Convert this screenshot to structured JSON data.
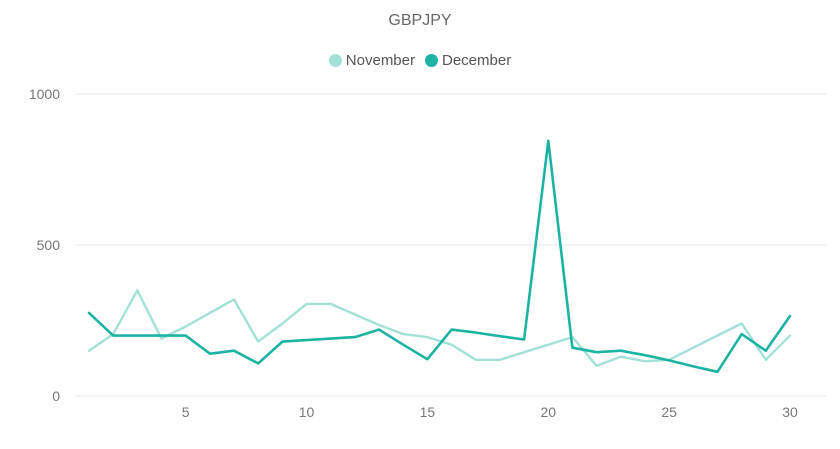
{
  "chart_data": {
    "type": "line",
    "title": "GBPJPY",
    "xlabel": "",
    "ylabel": "",
    "xlim": [
      1,
      30
    ],
    "ylim": [
      0,
      1000
    ],
    "x_ticks": [
      5,
      10,
      15,
      20,
      25,
      30
    ],
    "y_ticks": [
      0,
      500,
      1000
    ],
    "grid": "horizontal",
    "legend_position": "top-center",
    "series": [
      {
        "name": "November",
        "color": "#a2e1d6",
        "x": [
          1,
          2,
          3,
          4,
          5,
          6,
          7,
          8,
          9,
          10,
          11,
          12,
          13,
          14,
          15,
          16,
          17,
          18,
          19,
          20,
          21,
          22,
          23,
          24,
          25,
          26,
          27,
          28,
          29,
          30
        ],
        "values": [
          150,
          205,
          350,
          190,
          230,
          275,
          320,
          180,
          240,
          305,
          305,
          270,
          235,
          205,
          195,
          170,
          120,
          120,
          145,
          170,
          195,
          100,
          130,
          115,
          120,
          160,
          200,
          240,
          120,
          200
        ]
      },
      {
        "name": "December",
        "color": "#1db3a3",
        "x": [
          1,
          2,
          3,
          4,
          5,
          6,
          7,
          8,
          9,
          10,
          11,
          12,
          13,
          14,
          15,
          16,
          17,
          18,
          19,
          20,
          21,
          22,
          23,
          24,
          25,
          26,
          27,
          28,
          29,
          30
        ],
        "values": [
          275,
          200,
          200,
          200,
          200,
          140,
          150,
          108,
          180,
          185,
          190,
          195,
          220,
          170,
          122,
          220,
          210,
          198,
          187,
          845,
          160,
          145,
          150,
          135,
          118,
          98,
          80,
          205,
          150,
          265
        ]
      }
    ]
  }
}
